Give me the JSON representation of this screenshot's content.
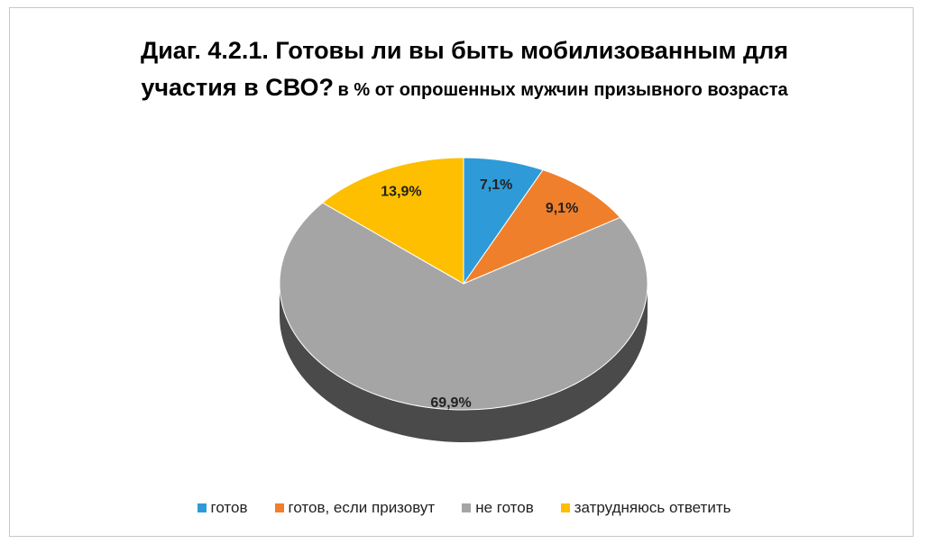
{
  "chart_data": {
    "type": "pie",
    "title": "Диаг. 4.2.1. Готовы ли вы быть мобилизованным для участия в СВО?",
    "subtitle": "в % от опрошенных мужчин призывного возраста",
    "categories": [
      "готов",
      "готов, если призовут",
      "не готов",
      "затрудняюсь ответить"
    ],
    "values": [
      7.1,
      9.1,
      69.9,
      13.9
    ],
    "value_labels": [
      "7,1%",
      "9,1%",
      "69,9%",
      "13,9%"
    ],
    "colors": [
      "#2e9bd8",
      "#f07f2b",
      "#a5a5a5",
      "#fdbf00"
    ],
    "legend": "bottom"
  }
}
